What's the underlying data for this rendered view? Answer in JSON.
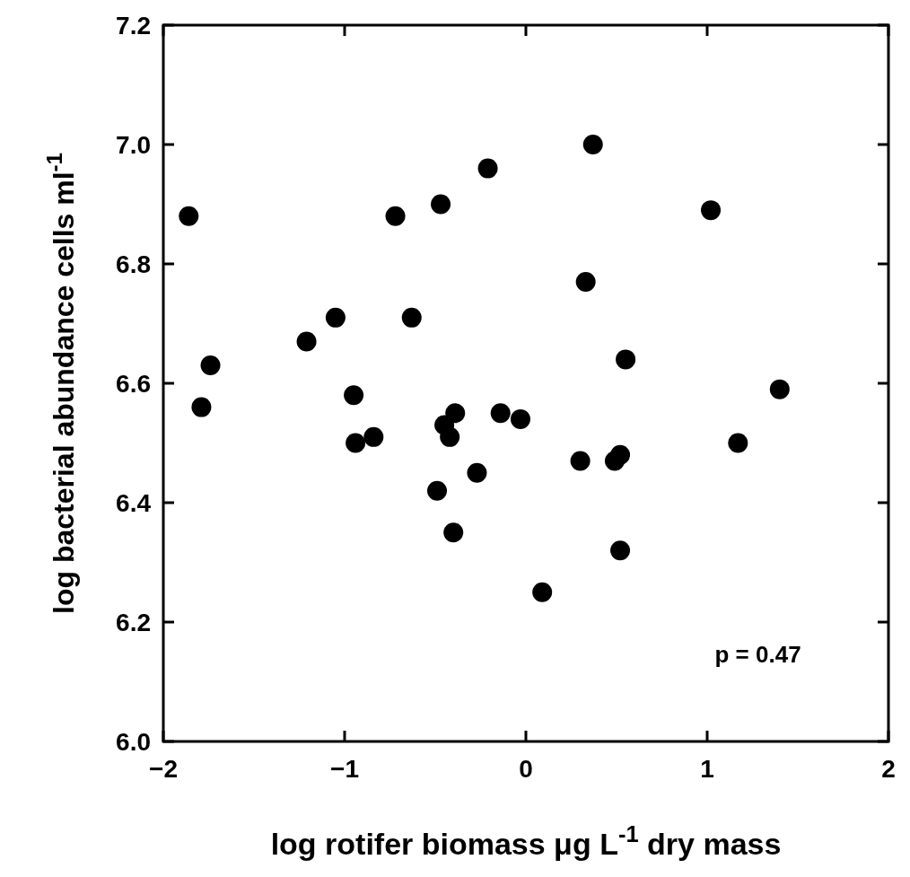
{
  "chart_data": {
    "type": "scatter",
    "xlabel": "log rotifer biomass μg L$^{-1}$ dry mass",
    "ylabel": "log bacterial abundance cells ml$^{-1}$",
    "xlim": [
      -2,
      2
    ],
    "ylim": [
      6.0,
      7.2
    ],
    "xticks": [
      {
        "value": -2,
        "label": "−2"
      },
      {
        "value": -1,
        "label": "−1"
      },
      0,
      1,
      2
    ],
    "yticks": [
      {
        "value": 6.0,
        "label": "6.0"
      },
      6.2,
      6.4,
      6.6,
      6.8,
      {
        "value": 7.0,
        "label": "7.0"
      },
      7.2
    ],
    "marker": "circle",
    "grid": false,
    "annotations": [
      {
        "text": "p = 0.47"
      }
    ],
    "series": [
      {
        "color": "#000000",
        "x": [
          -1.86,
          -1.74,
          -1.79,
          -1.21,
          -1.05,
          -0.72,
          -0.47,
          -0.21,
          -0.63,
          -0.95,
          -0.94,
          -0.84,
          -0.39,
          -0.45,
          -0.42,
          -0.14,
          -0.03,
          0.3,
          -0.27,
          -0.49,
          -0.4,
          0.09,
          0.37,
          1.02,
          0.33,
          0.55,
          1.4,
          1.17,
          0.52,
          0.49,
          0.52
        ],
        "values": [
          6.88,
          6.63,
          6.56,
          6.67,
          6.71,
          6.88,
          6.9,
          6.96,
          6.71,
          6.58,
          6.5,
          6.51,
          6.55,
          6.53,
          6.51,
          6.55,
          6.54,
          6.47,
          6.45,
          6.42,
          6.35,
          6.25,
          7.0,
          6.89,
          6.77,
          6.64,
          6.59,
          6.5,
          6.48,
          6.47,
          6.32
        ]
      }
    ]
  }
}
